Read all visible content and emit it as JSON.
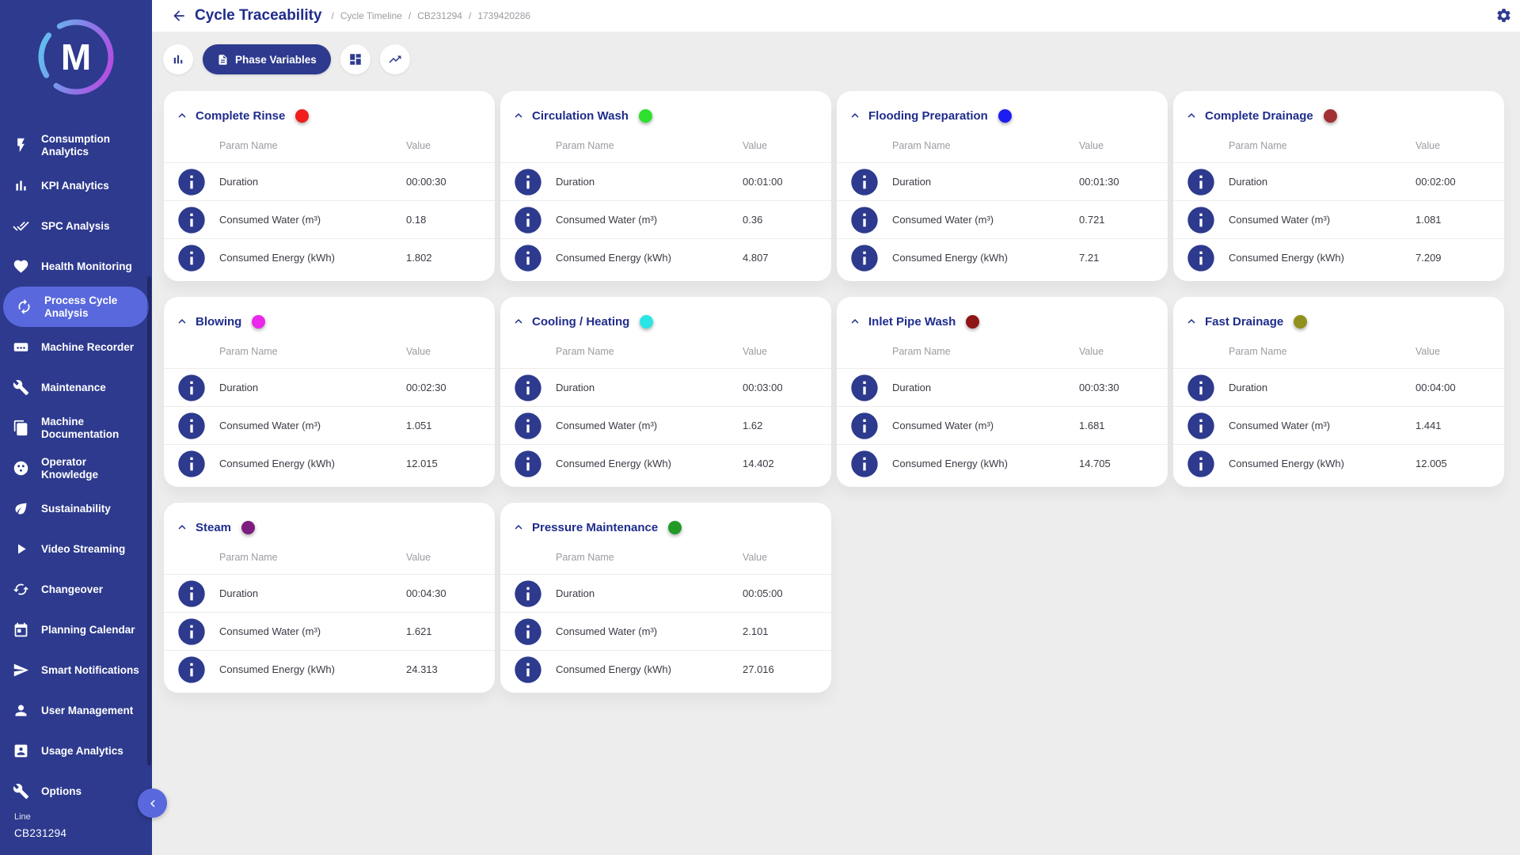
{
  "header": {
    "title": "Cycle Traceability",
    "breadcrumbs": [
      "Cycle Timeline",
      "CB231294",
      "1739420286"
    ],
    "icons": [
      "back-arrow-icon",
      "gear-icon"
    ]
  },
  "toolbar": {
    "phase_variables_label": "Phase Variables",
    "icons": [
      "bar-chart-icon",
      "document-icon",
      "grid-icon",
      "trend-line-icon"
    ]
  },
  "sidebar": {
    "logo_letter": "M",
    "items": [
      {
        "label": "Consumption Analytics",
        "icon": "bolt",
        "selected": false
      },
      {
        "label": "KPI Analytics",
        "icon": "bars",
        "selected": false
      },
      {
        "label": "SPC Analysis",
        "icon": "checks",
        "selected": false
      },
      {
        "label": "Health Monitoring",
        "icon": "heart",
        "selected": false
      },
      {
        "label": "Process Cycle Analysis",
        "icon": "cycle",
        "selected": true
      },
      {
        "label": "Machine Recorder",
        "icon": "cassette",
        "selected": false
      },
      {
        "label": "Maintenance",
        "icon": "wrench",
        "selected": false
      },
      {
        "label": "Machine Documentation",
        "icon": "docs",
        "selected": false
      },
      {
        "label": "Operator Knowledge",
        "icon": "knowledge",
        "selected": false
      },
      {
        "label": "Sustainability",
        "icon": "leaf",
        "selected": false
      },
      {
        "label": "Video Streaming",
        "icon": "play",
        "selected": false
      },
      {
        "label": "Changeover",
        "icon": "cached",
        "selected": false
      },
      {
        "label": "Planning Calendar",
        "icon": "calendar",
        "selected": false
      },
      {
        "label": "Smart Notifications",
        "icon": "send",
        "selected": false
      },
      {
        "label": "User Management",
        "icon": "person",
        "selected": false
      },
      {
        "label": "Usage Analytics",
        "icon": "badge",
        "selected": false
      },
      {
        "label": "Options",
        "icon": "wrench",
        "selected": false
      }
    ],
    "line_label": "Line",
    "line_value": "CB231294"
  },
  "columns": {
    "param": "Param Name",
    "value": "Value"
  },
  "phases": [
    {
      "name": "Complete Rinse",
      "color": "#f21d1d",
      "rows": [
        {
          "param": "Duration",
          "value": "00:00:30"
        },
        {
          "param": "Consumed Water (m³)",
          "value": "0.18"
        },
        {
          "param": "Consumed Energy (kWh)",
          "value": "1.802"
        }
      ]
    },
    {
      "name": "Circulation Wash",
      "color": "#2ee02e",
      "rows": [
        {
          "param": "Duration",
          "value": "00:01:00"
        },
        {
          "param": "Consumed Water (m³)",
          "value": "0.36"
        },
        {
          "param": "Consumed Energy (kWh)",
          "value": "4.807"
        }
      ]
    },
    {
      "name": "Flooding Preparation",
      "color": "#1d1df2",
      "rows": [
        {
          "param": "Duration",
          "value": "00:01:30"
        },
        {
          "param": "Consumed Water (m³)",
          "value": "0.721"
        },
        {
          "param": "Consumed Energy (kWh)",
          "value": "7.21"
        }
      ]
    },
    {
      "name": "Complete Drainage",
      "color": "#a33134",
      "rows": [
        {
          "param": "Duration",
          "value": "00:02:00"
        },
        {
          "param": "Consumed Water (m³)",
          "value": "1.081"
        },
        {
          "param": "Consumed Energy (kWh)",
          "value": "7.209"
        }
      ]
    },
    {
      "name": "Blowing",
      "color": "#ea27ea",
      "rows": [
        {
          "param": "Duration",
          "value": "00:02:30"
        },
        {
          "param": "Consumed Water (m³)",
          "value": "1.051"
        },
        {
          "param": "Consumed Energy (kWh)",
          "value": "12.015"
        }
      ]
    },
    {
      "name": "Cooling / Heating",
      "color": "#2ae5e5",
      "rows": [
        {
          "param": "Duration",
          "value": "00:03:00"
        },
        {
          "param": "Consumed Water (m³)",
          "value": "1.62"
        },
        {
          "param": "Consumed Energy (kWh)",
          "value": "14.402"
        }
      ]
    },
    {
      "name": "Inlet Pipe Wash",
      "color": "#8f1616",
      "rows": [
        {
          "param": "Duration",
          "value": "00:03:30"
        },
        {
          "param": "Consumed Water (m³)",
          "value": "1.681"
        },
        {
          "param": "Consumed Energy (kWh)",
          "value": "14.705"
        }
      ]
    },
    {
      "name": "Fast Drainage",
      "color": "#90901c",
      "rows": [
        {
          "param": "Duration",
          "value": "00:04:00"
        },
        {
          "param": "Consumed Water (m³)",
          "value": "1.441"
        },
        {
          "param": "Consumed Energy (kWh)",
          "value": "12.005"
        }
      ]
    },
    {
      "name": "Steam",
      "color": "#7d1d80",
      "rows": [
        {
          "param": "Duration",
          "value": "00:04:30"
        },
        {
          "param": "Consumed Water (m³)",
          "value": "1.621"
        },
        {
          "param": "Consumed Energy (kWh)",
          "value": "24.313"
        }
      ]
    },
    {
      "name": "Pressure Maintenance",
      "color": "#219b26",
      "rows": [
        {
          "param": "Duration",
          "value": "00:05:00"
        },
        {
          "param": "Consumed Water (m³)",
          "value": "2.101"
        },
        {
          "param": "Consumed Energy (kWh)",
          "value": "27.016"
        }
      ]
    }
  ],
  "colors": {
    "sidebar_bg": "#2d3a8e",
    "accent": "#1f2c8c",
    "selected_item": "#5968dd",
    "page_bg": "#ededed",
    "card_bg": "#ffffff"
  }
}
